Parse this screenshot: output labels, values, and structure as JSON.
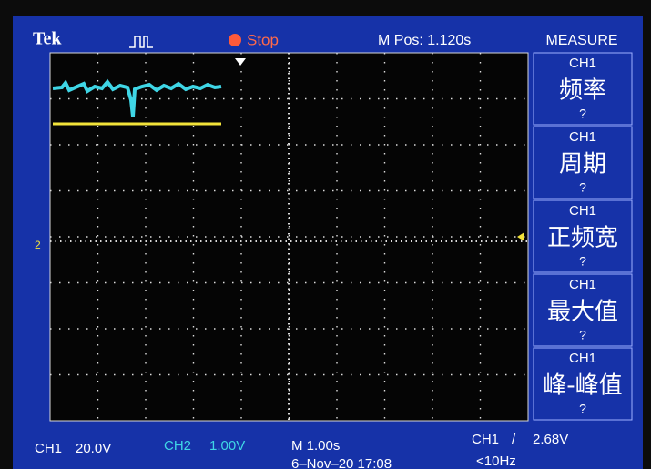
{
  "header": {
    "brand": "Tek",
    "status": "Stop",
    "position": "M Pos: 1.120s",
    "menu_title": "MEASURE"
  },
  "measurements": [
    {
      "source": "CH1",
      "name": "频率",
      "value": "?"
    },
    {
      "source": "CH1",
      "name": "周期",
      "value": "?"
    },
    {
      "source": "CH1",
      "name": "正频宽",
      "value": "?"
    },
    {
      "source": "CH1",
      "name": "最大值",
      "value": "?"
    },
    {
      "source": "CH1",
      "name": "峰-峰值",
      "value": "?"
    }
  ],
  "channel_marker": "2",
  "footer": {
    "ch1_label": "CH1",
    "ch1_scale": "20.0V",
    "ch2_label": "CH2",
    "ch2_scale": "1.00V",
    "timebase": "M 1.00s",
    "datetime": "6–Nov–20 17:08",
    "trigger_source": "CH1",
    "trigger_slope": "/",
    "trigger_level": "2.68V",
    "frequency": "<10Hz"
  }
}
